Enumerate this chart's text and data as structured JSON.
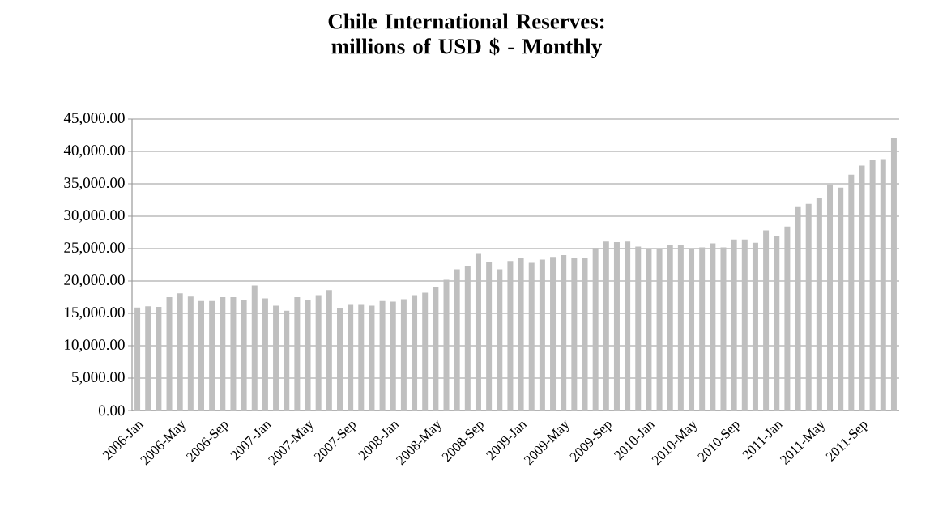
{
  "chart_data": {
    "type": "bar",
    "title": "Chile International Reserves: millions of USD $ - Monthly",
    "categories": [
      "2006-Jan",
      null,
      null,
      null,
      "2006-May",
      null,
      null,
      null,
      "2006-Sep",
      null,
      null,
      null,
      "2007-Jan",
      null,
      null,
      null,
      "2007-May",
      null,
      null,
      null,
      "2007-Sep",
      null,
      null,
      null,
      "2008-Jan",
      null,
      null,
      null,
      "2008-May",
      null,
      null,
      null,
      "2008-Sep",
      null,
      null,
      null,
      "2009-Jan",
      null,
      null,
      null,
      "2009-May",
      null,
      null,
      null,
      "2009-Sep",
      null,
      null,
      null,
      "2010-Jan",
      null,
      null,
      null,
      "2010-May",
      null,
      null,
      null,
      "2010-Sep",
      null,
      null,
      null,
      "2011-Jan",
      null,
      null,
      null,
      "2011-May",
      null,
      null,
      null,
      "2011-Sep",
      null,
      null,
      null
    ],
    "values": [
      15900,
      16100,
      16000,
      17500,
      18100,
      17600,
      16900,
      16900,
      17500,
      17500,
      17100,
      19300,
      17300,
      16200,
      15400,
      17500,
      17000,
      17800,
      18600,
      15800,
      16300,
      16300,
      16200,
      16900,
      16800,
      17200,
      17800,
      18200,
      19100,
      20200,
      21800,
      22300,
      24200,
      23000,
      21800,
      23100,
      23500,
      22800,
      23300,
      23600,
      24000,
      23500,
      23500,
      25100,
      26100,
      26000,
      26100,
      25300,
      25000,
      25000,
      25600,
      25500,
      24900,
      25200,
      25800,
      25200,
      26400,
      26400,
      25900,
      27800,
      26900,
      28400,
      31400,
      31900,
      32800,
      34900,
      34400,
      36400,
      37800,
      38700,
      38800,
      42000
    ],
    "color": "#bfbfbf",
    "ylim": [
      0,
      45000
    ],
    "yticks": [
      {
        "value": 0,
        "label": "0.00"
      },
      {
        "value": 5000,
        "label": "5,000.00"
      },
      {
        "value": 10000,
        "label": "10,000.00"
      },
      {
        "value": 15000,
        "label": "15,000.00"
      },
      {
        "value": 20000,
        "label": "20,000.00"
      },
      {
        "value": 25000,
        "label": "25,000.00"
      },
      {
        "value": 30000,
        "label": "30,000.00"
      },
      {
        "value": 35000,
        "label": "35,000.00"
      },
      {
        "value": 40000,
        "label": "40,000.00"
      },
      {
        "value": 45000,
        "label": "45,000.00"
      }
    ],
    "grid": "y"
  }
}
